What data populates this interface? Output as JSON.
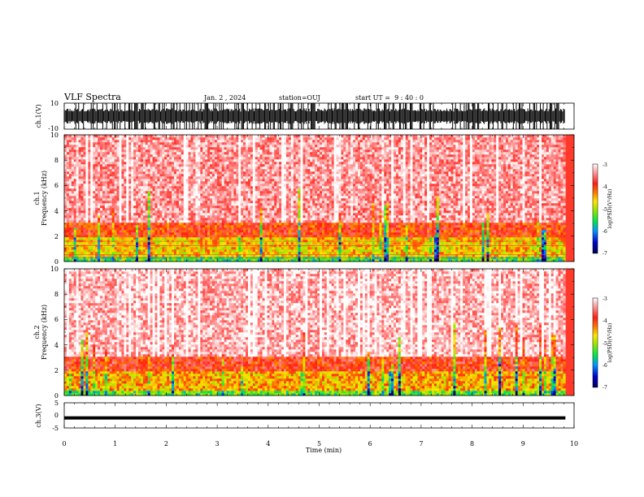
{
  "header": {
    "title": "VLF Spectra",
    "date": "Jan. 2 , 2024",
    "station": "station=OUJ",
    "start": "start UT =  9 : 40 : 0"
  },
  "colors": {
    "colormap": [
      "#0a0a8c",
      "#1e50ff",
      "#00c8ff",
      "#00e650",
      "#a0e600",
      "#e6e600",
      "#ff9600",
      "#ff2d1e",
      "#ffd2d2",
      "#ffffff"
    ],
    "trace": "#000000",
    "harmonic_line": "#ff3c3c"
  },
  "chart_data": [
    {
      "type": "line",
      "panel": "ch1-waveform",
      "ylabel": "ch.1(V)",
      "ylim": [
        -10,
        10
      ],
      "yticks": [
        "10",
        "-10"
      ],
      "xlim": [
        0,
        9.83
      ],
      "x_unit": "min",
      "envelope": {
        "typical_amplitude_v": 6,
        "burst_amplitude_v": 10
      }
    },
    {
      "type": "heatmap",
      "panel": "ch1-spectrogram",
      "ylabel": "ch.1\nFrequency (kHz)",
      "ylim": [
        0,
        10
      ],
      "yticks": [
        "0",
        "2",
        "4",
        "6",
        "8",
        "10"
      ],
      "xlim": [
        0,
        9.83
      ],
      "colorbar": {
        "label": "log(PSD)(V²/Hz)",
        "range": [
          -7,
          -3
        ],
        "ticks": [
          "-3",
          "-4",
          "-5",
          "-6",
          "-7"
        ]
      },
      "description_values": {
        "background_level_high_freq": -3.4,
        "low_freq_band_khz": [
          0,
          2
        ],
        "low_freq_band_level": -4.6
      },
      "horizontal_lines_khz": [
        0.3,
        0.55,
        1.25,
        1.6,
        2.0
      ]
    },
    {
      "type": "heatmap",
      "panel": "ch2-spectrogram",
      "ylabel": "ch.2\nFrequency (kHz)",
      "ylim": [
        0,
        10
      ],
      "yticks": [
        "0",
        "2",
        "4",
        "6",
        "8",
        "10"
      ],
      "xlim": [
        0,
        9.83
      ],
      "colorbar": {
        "label": "log(PSD)(V²/Hz)",
        "range": [
          -7,
          -3
        ],
        "ticks": [
          "-3",
          "-4",
          "-5",
          "-6",
          "-7"
        ]
      },
      "description_values": {
        "background_level_high_freq": -3.3,
        "low_freq_band_khz": [
          0,
          2
        ],
        "low_freq_band_level": -4.5
      }
    },
    {
      "type": "line",
      "panel": "ch3-waveform",
      "ylabel": "ch.3(V)",
      "ylim": [
        -5,
        5
      ],
      "yticks": [
        "5",
        "0",
        "-5"
      ],
      "xlim": [
        0,
        9.83
      ],
      "x": [
        0,
        9.83
      ],
      "y": [
        -1.0,
        -1.0
      ]
    }
  ],
  "xaxis": {
    "label": "Time (min)",
    "range": [
      0,
      10
    ],
    "ticks": [
      "0",
      "1",
      "2",
      "3",
      "4",
      "5",
      "6",
      "7",
      "8",
      "9",
      "10"
    ]
  }
}
